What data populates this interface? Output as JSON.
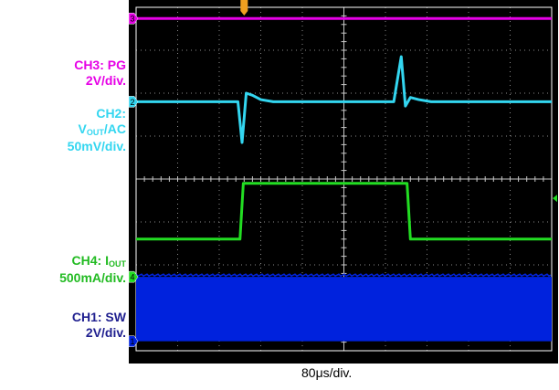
{
  "channels": {
    "ch3": {
      "line1": "CH3: PG",
      "line2": "2V/div."
    },
    "ch2": {
      "line1": "CH2:",
      "main": "V",
      "sub": "OUT",
      "suffix": "/AC",
      "line3": "50mV/div."
    },
    "ch4": {
      "prefix": "CH4: I",
      "sub": "OUT",
      "line2": "500mA/div."
    },
    "ch1": {
      "line1": "CH1: SW",
      "line2": "2V/div."
    }
  },
  "markers": {
    "ch3": "3",
    "ch2": "2",
    "ch4": "4",
    "ch1": "1"
  },
  "colors": {
    "ch3": "#e600e6",
    "ch2": "#33d6f0",
    "ch4": "#22dd22",
    "ch1": "#0022dd",
    "label_ch1": "#1f1f8f",
    "screen": "#000000",
    "grid": "#8a8a8a",
    "trigger": "#f0a020"
  },
  "chart_data": {
    "type": "line",
    "xlabel": "80μs/div.",
    "divisions": {
      "x": 10,
      "y": 8
    },
    "x_range_div": [
      0,
      10
    ],
    "y_range_div": [
      0,
      8
    ],
    "series": [
      {
        "name": "CH3: PG",
        "channel": "ch3",
        "x": [
          0,
          10
        ],
        "y": [
          7.74,
          7.74
        ]
      },
      {
        "name": "CH2: VOUT/AC",
        "channel": "ch2",
        "x": [
          0,
          2.45,
          2.55,
          2.65,
          2.8,
          3.0,
          3.3,
          6.2,
          6.38,
          6.48,
          6.6,
          6.8,
          7.1,
          10
        ],
        "y": [
          5.8,
          5.8,
          4.85,
          6.0,
          5.95,
          5.85,
          5.8,
          5.8,
          6.85,
          5.7,
          5.9,
          5.85,
          5.8,
          5.8
        ]
      },
      {
        "name": "CH4: IOUT",
        "channel": "ch4",
        "x": [
          0,
          2.5,
          2.58,
          6.52,
          6.6,
          10
        ],
        "y": [
          2.6,
          2.6,
          3.9,
          3.9,
          2.6,
          2.6
        ]
      },
      {
        "name": "CH1: SW",
        "channel": "ch1",
        "band": true,
        "x": [
          0,
          2.5,
          2.58,
          6.55,
          6.6,
          10
        ],
        "y_low": [
          0.22,
          0.22,
          0.22,
          0.22,
          0.22,
          0.22
        ],
        "y_high": [
          1.72,
          1.72,
          1.72,
          1.72,
          1.72,
          1.72
        ]
      }
    ]
  }
}
